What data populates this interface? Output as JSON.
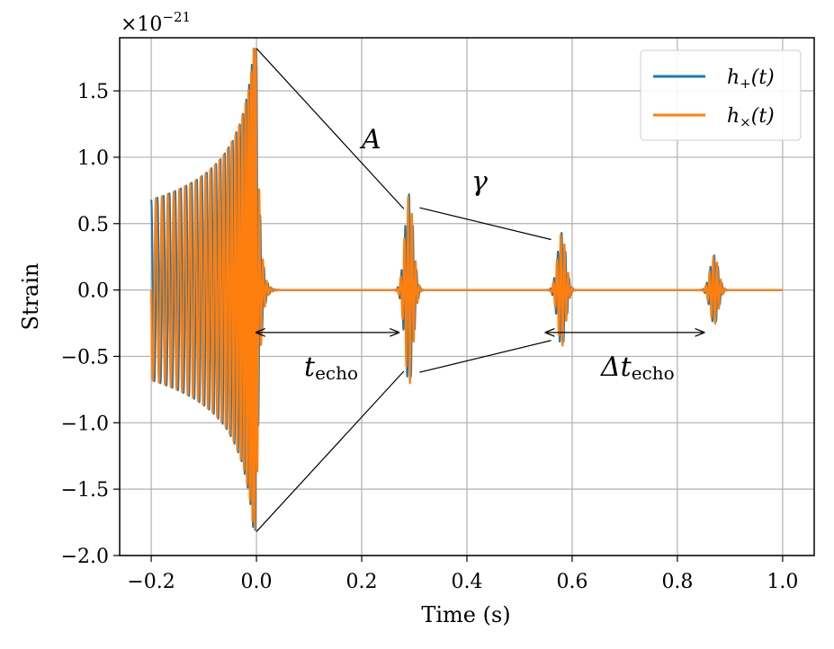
{
  "chart_data": {
    "type": "line",
    "title": "",
    "xlabel": "Time (s)",
    "ylabel": "Strain",
    "y_scale_label": "×10",
    "y_scale_exponent": "−21",
    "xlim": [
      -0.26,
      1.06
    ],
    "ylim": [
      -2.0,
      1.9
    ],
    "grid": true,
    "legend_position": "top-right",
    "x_ticks": [
      -0.2,
      0.0,
      0.2,
      0.4,
      0.6,
      0.8,
      1.0
    ],
    "x_tick_labels": [
      "−0.2",
      "0.0",
      "0.2",
      "0.4",
      "0.6",
      "0.8",
      "1.0"
    ],
    "y_ticks": [
      -2.0,
      -1.5,
      -1.0,
      -0.5,
      0.0,
      0.5,
      1.0,
      1.5
    ],
    "y_tick_labels": [
      "−2.0",
      "−1.5",
      "−1.0",
      "−0.5",
      "0.0",
      "0.5",
      "1.0",
      "1.5"
    ],
    "series": [
      {
        "name": "h₊(t)",
        "legend_main": "h",
        "legend_sub": "+",
        "legend_tail": "(t)",
        "color": "#1f77b4"
      },
      {
        "name": "h×(t)",
        "legend_main": "h",
        "legend_sub": "×",
        "legend_tail": "(t)",
        "color": "#ff7f0e"
      }
    ],
    "signal": {
      "x_start": -0.2,
      "x_end": 1.0,
      "merger_time": 0.0,
      "merger_peak_plus": 1.82,
      "merger_peak_minus": -1.82,
      "inspiral_amplitude_start": 0.68,
      "echo_times": [
        0.29,
        0.58,
        0.87
      ],
      "echo_peaks": [
        0.72,
        0.43,
        0.26
      ]
    },
    "annotations": {
      "amplitude_label": "A",
      "damping_label": "γ",
      "t_echo_main": "t",
      "t_echo_sub": "echo",
      "dt_echo_main": "Δt",
      "dt_echo_sub": "echo"
    }
  }
}
